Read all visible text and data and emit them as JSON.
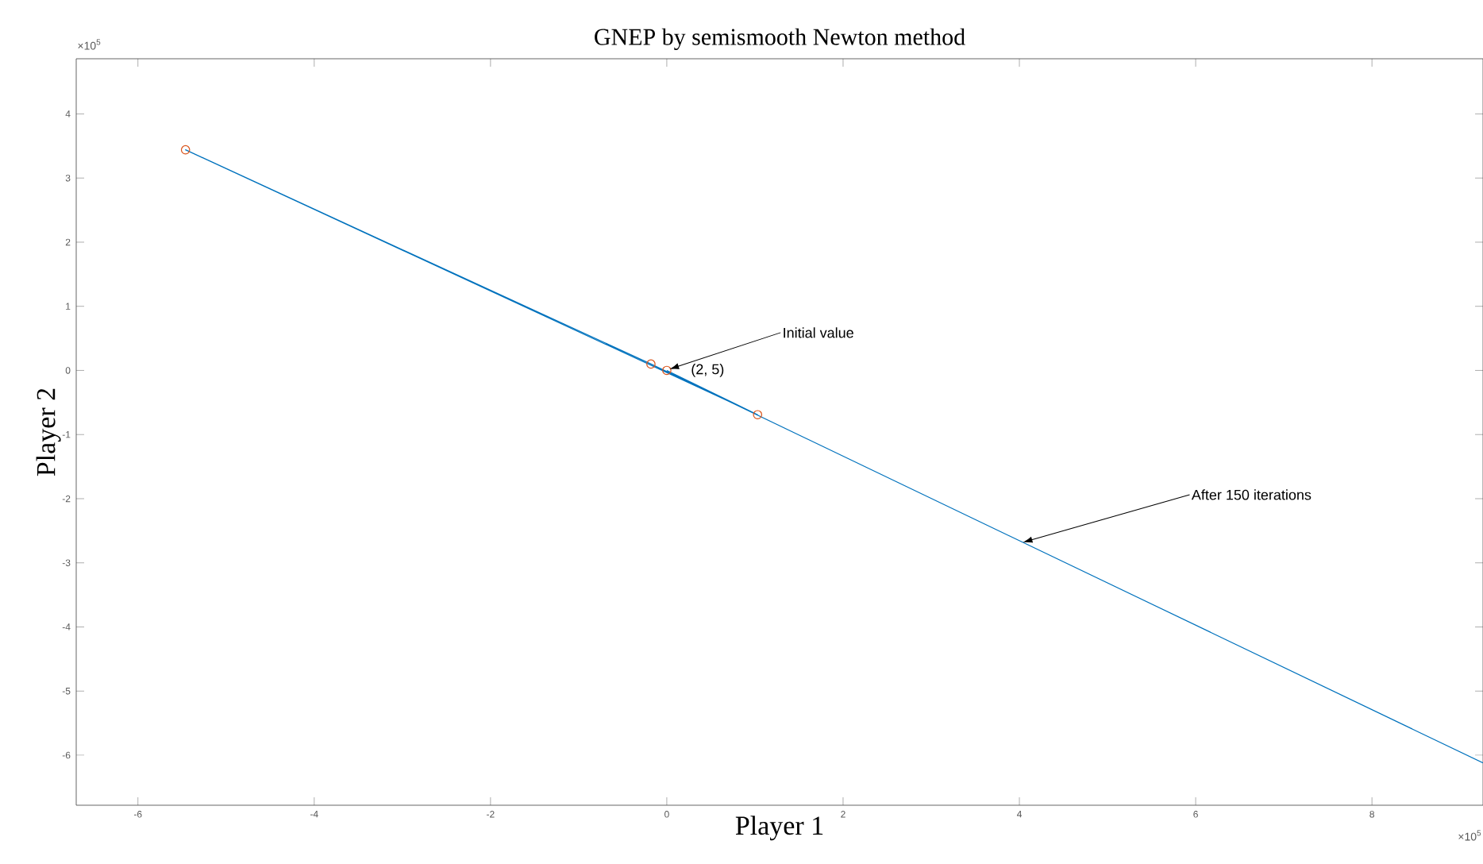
{
  "chart_data": {
    "type": "line",
    "title": "GNEP by semismooth Newton method",
    "xlabel": "Player 1",
    "ylabel": "Player 2",
    "xlim": [
      -6.7,
      9.26
    ],
    "ylim": [
      -6.78,
      4.86
    ],
    "xticks": [
      -6,
      -4,
      -2,
      0,
      2,
      4,
      6,
      8
    ],
    "yticks": [
      -6,
      -5,
      -4,
      -3,
      -2,
      -1,
      0,
      1,
      2,
      3,
      4
    ],
    "series": [
      {
        "color": "#0072bd",
        "marker": "none",
        "x": [
          0,
          1.03,
          -5.46,
          -0.18,
          9.26
        ],
        "values": [
          0,
          -0.69,
          3.44,
          0.1,
          -6.12
        ]
      },
      {
        "type": "scatter",
        "color": "#d95319",
        "marker": "circle",
        "x": [
          0,
          1.03,
          -5.46,
          -0.18
        ],
        "values": [
          0,
          -0.69,
          3.44,
          0.1
        ]
      }
    ],
    "annotations": [
      {
        "text": "Initial value",
        "x": 0.03,
        "y": 0.02
      },
      "(2, 5)",
      {
        "text": "After 150 iterations",
        "x": 4.04,
        "y": -2.68
      },
      "×10$^{5}$",
      "×10$^{5}$"
    ],
    "grid": false
  }
}
